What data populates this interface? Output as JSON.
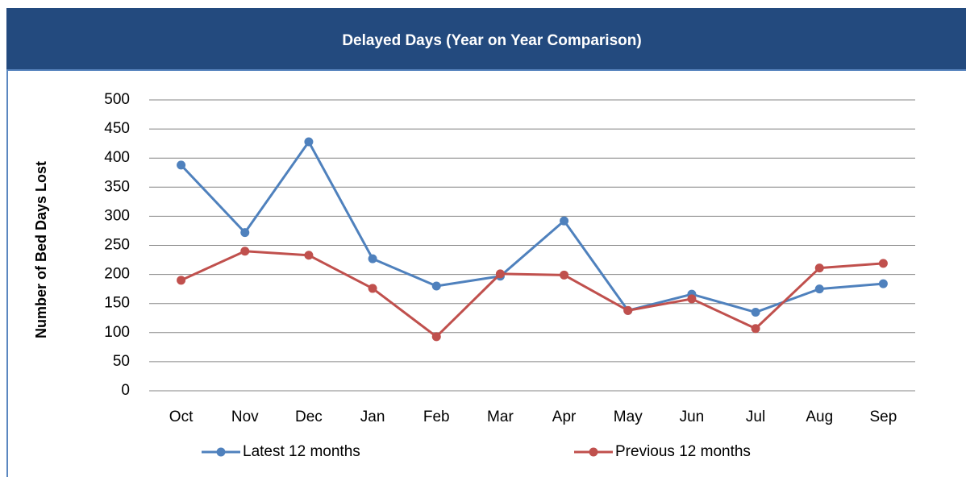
{
  "chart_data": {
    "type": "line",
    "title": "Delayed Days (Year on Year Comparison)",
    "y_label": "Number of Bed Days Lost",
    "categories": [
      "Oct",
      "Nov",
      "Dec",
      "Jan",
      "Feb",
      "Mar",
      "Apr",
      "May",
      "Jun",
      "Jul",
      "Aug",
      "Sep"
    ],
    "series": [
      {
        "name": "Latest 12 months",
        "color": "#4f81bd",
        "values": [
          388,
          272,
          428,
          227,
          180,
          197,
          292,
          138,
          166,
          135,
          175,
          184
        ]
      },
      {
        "name": "Previous 12 months",
        "color": "#c0504d",
        "values": [
          190,
          240,
          233,
          176,
          93,
          201,
          199,
          138,
          158,
          107,
          211,
          219
        ]
      }
    ],
    "ylim": [
      0,
      500
    ],
    "yticks": [
      0,
      50,
      100,
      150,
      200,
      250,
      300,
      350,
      400,
      450,
      500
    ],
    "grid": true,
    "legend": "bottom"
  }
}
